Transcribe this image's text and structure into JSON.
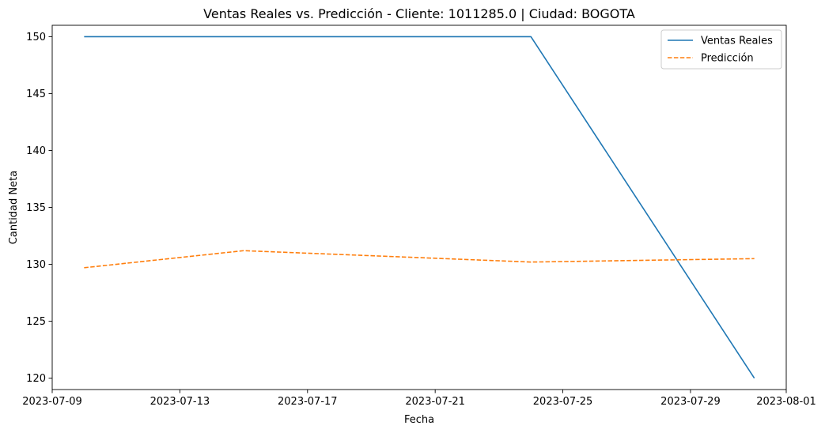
{
  "chart_data": {
    "type": "line",
    "title": "Ventas Reales vs. Predicción - Cliente: 1011285.0 | Ciudad: BOGOTA",
    "xlabel": "Fecha",
    "ylabel": "Cantidad Neta",
    "x": [
      "2023-07-10",
      "2023-07-15",
      "2023-07-24",
      "2023-07-31"
    ],
    "series": [
      {
        "name": "Ventas Reales",
        "color": "#1f77b4",
        "style": "solid",
        "values": [
          150,
          150,
          150,
          120
        ]
      },
      {
        "name": "Predicción",
        "color": "#ff7f0e",
        "style": "dashed",
        "values": [
          129.7,
          131.2,
          130.2,
          130.5
        ]
      }
    ],
    "xlim": [
      "2023-07-09",
      "2023-08-01"
    ],
    "ylim": [
      119,
      151
    ],
    "x_ticks": [
      "2023-07-09",
      "2023-07-13",
      "2023-07-17",
      "2023-07-21",
      "2023-07-25",
      "2023-07-29",
      "2023-08-01"
    ],
    "y_ticks": [
      120,
      125,
      130,
      135,
      140,
      145,
      150
    ],
    "grid": false,
    "legend_position": "top-right"
  }
}
